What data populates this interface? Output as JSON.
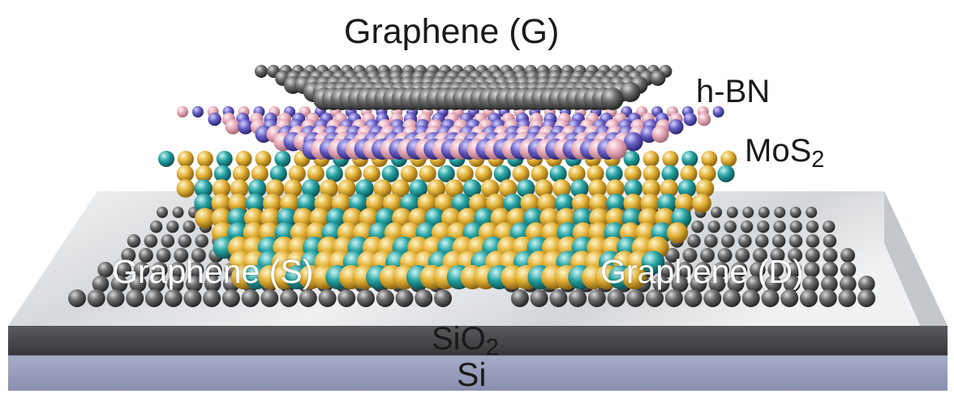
{
  "labels": {
    "graphene_gate": "Graphene (G)",
    "hbn": "h-BN",
    "mos2_main": "MoS",
    "mos2_sub": "2",
    "graphene_source": "Graphene (S)",
    "graphene_drain": "Graphene (D)",
    "sio2_main": "SiO",
    "sio2_sub": "2",
    "si": "Si"
  },
  "colors": {
    "carbon": "#6b6b6b",
    "boron": "#e9b5c0",
    "nitrogen": "#6b62c8",
    "molybdenum": "#26a3a3",
    "sulfur": "#e3b237",
    "substrate_top": "#e6e8ea",
    "sio2_side": "#4a4a4e",
    "si_side": "#9aa0bd"
  },
  "icons": {
    "molecule_style": "ball-model"
  }
}
